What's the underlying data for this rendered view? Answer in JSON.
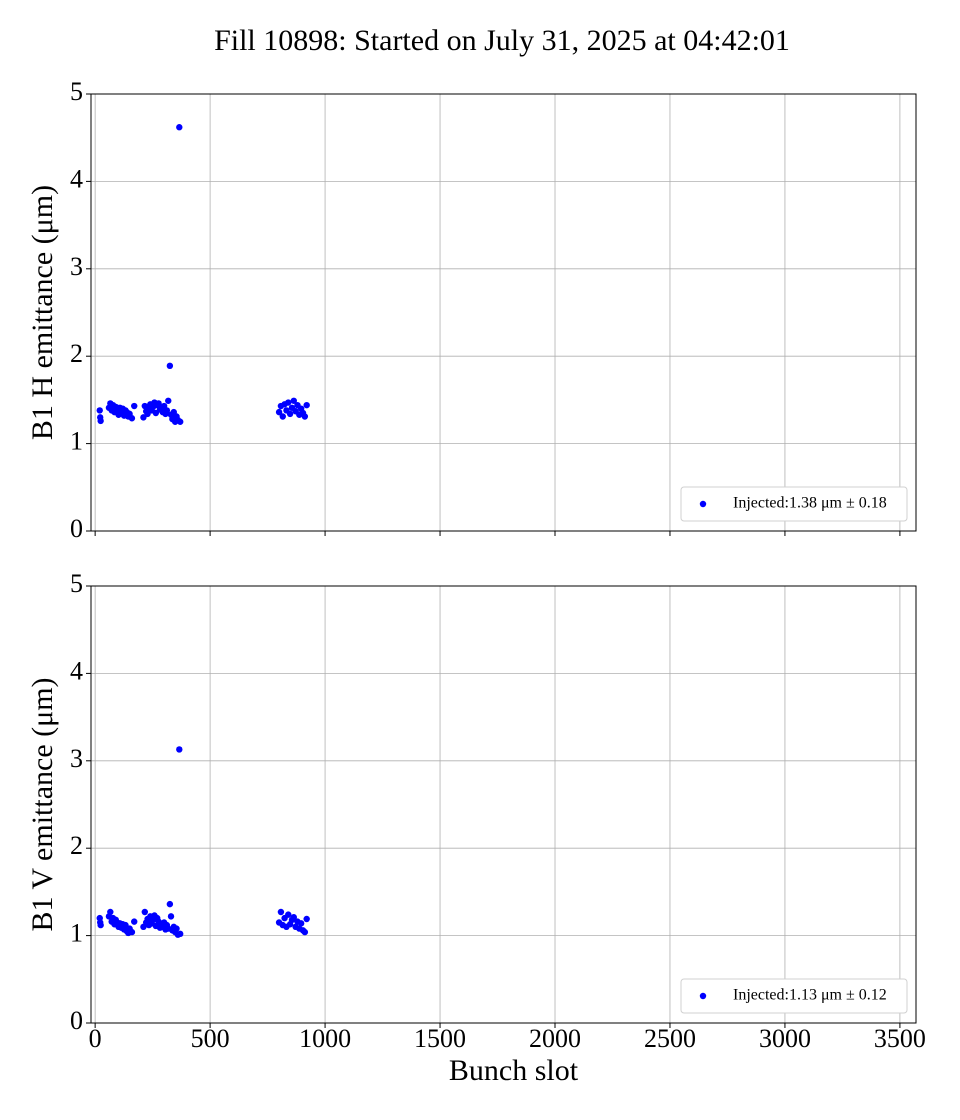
{
  "title": "Fill 10898: Started on July 31, 2025 at 04:42:01",
  "chart_data": [
    {
      "type": "scatter",
      "ylabel": "B1 H emittance (μm)",
      "x": [
        20,
        22,
        24,
        60,
        66,
        72,
        78,
        84,
        90,
        96,
        102,
        108,
        114,
        120,
        126,
        132,
        138,
        144,
        150,
        160,
        170,
        210,
        216,
        222,
        228,
        234,
        240,
        246,
        252,
        258,
        264,
        270,
        276,
        282,
        288,
        294,
        300,
        306,
        312,
        318,
        325,
        330,
        336,
        342,
        348,
        354,
        360,
        366,
        370,
        800,
        808,
        816,
        824,
        832,
        840,
        848,
        856,
        864,
        872,
        880,
        888,
        896,
        904,
        912,
        920
      ],
      "series": [
        {
          "name": "Injected:1.38 μm ± 0.18",
          "color": "#0000ff",
          "values": [
            1.38,
            1.3,
            1.26,
            1.41,
            1.46,
            1.38,
            1.44,
            1.36,
            1.42,
            1.39,
            1.33,
            1.41,
            1.35,
            1.4,
            1.32,
            1.38,
            1.36,
            1.31,
            1.34,
            1.29,
            1.43,
            1.3,
            1.43,
            1.37,
            1.34,
            1.4,
            1.45,
            1.38,
            1.42,
            1.47,
            1.35,
            1.44,
            1.46,
            1.39,
            1.41,
            1.36,
            1.43,
            1.34,
            1.38,
            1.49,
            1.89,
            1.33,
            1.28,
            1.36,
            1.25,
            1.31,
            1.27,
            4.62,
            1.25,
            1.36,
            1.43,
            1.31,
            1.45,
            1.38,
            1.47,
            1.34,
            1.41,
            1.49,
            1.37,
            1.44,
            1.33,
            1.4,
            1.35,
            1.31,
            1.44
          ]
        }
      ],
      "xlim": [
        -18,
        3570
      ],
      "ylim": [
        0,
        5
      ],
      "xticks": [
        0,
        500,
        1000,
        1500,
        2000,
        2500,
        3000,
        3500
      ],
      "yticks": [
        0,
        1,
        2,
        3,
        4,
        5
      ],
      "grid": true,
      "legend": "lower right"
    },
    {
      "type": "scatter",
      "ylabel": "B1 V emittance (μm)",
      "xlabel": "Bunch slot",
      "x": [
        20,
        22,
        24,
        60,
        66,
        72,
        78,
        84,
        90,
        96,
        102,
        108,
        114,
        120,
        126,
        132,
        138,
        144,
        150,
        160,
        170,
        210,
        216,
        222,
        228,
        234,
        240,
        246,
        252,
        258,
        264,
        270,
        276,
        282,
        288,
        294,
        300,
        306,
        312,
        318,
        325,
        330,
        336,
        342,
        348,
        354,
        360,
        366,
        370,
        800,
        808,
        816,
        824,
        832,
        840,
        848,
        856,
        864,
        872,
        880,
        888,
        896,
        904,
        912,
        920
      ],
      "series": [
        {
          "name": "Injected:1.13 μm ± 0.12",
          "color": "#0000ff",
          "values": [
            1.2,
            1.15,
            1.12,
            1.22,
            1.27,
            1.16,
            1.2,
            1.13,
            1.18,
            1.15,
            1.1,
            1.14,
            1.09,
            1.13,
            1.07,
            1.12,
            1.05,
            1.03,
            1.08,
            1.04,
            1.16,
            1.1,
            1.27,
            1.15,
            1.19,
            1.12,
            1.22,
            1.14,
            1.18,
            1.23,
            1.11,
            1.2,
            1.16,
            1.09,
            1.13,
            1.1,
            1.15,
            1.07,
            1.12,
            1.08,
            1.36,
            1.22,
            1.06,
            1.1,
            1.04,
            1.08,
            1.01,
            3.13,
            1.02,
            1.15,
            1.27,
            1.12,
            1.2,
            1.1,
            1.24,
            1.13,
            1.18,
            1.21,
            1.1,
            1.16,
            1.08,
            1.14,
            1.06,
            1.04,
            1.19
          ]
        }
      ],
      "xlim": [
        -18,
        3570
      ],
      "ylim": [
        0,
        5
      ],
      "xticks": [
        0,
        500,
        1000,
        1500,
        2000,
        2500,
        3000,
        3500
      ],
      "yticks": [
        0,
        1,
        2,
        3,
        4,
        5
      ],
      "grid": true,
      "legend": "lower right"
    }
  ]
}
